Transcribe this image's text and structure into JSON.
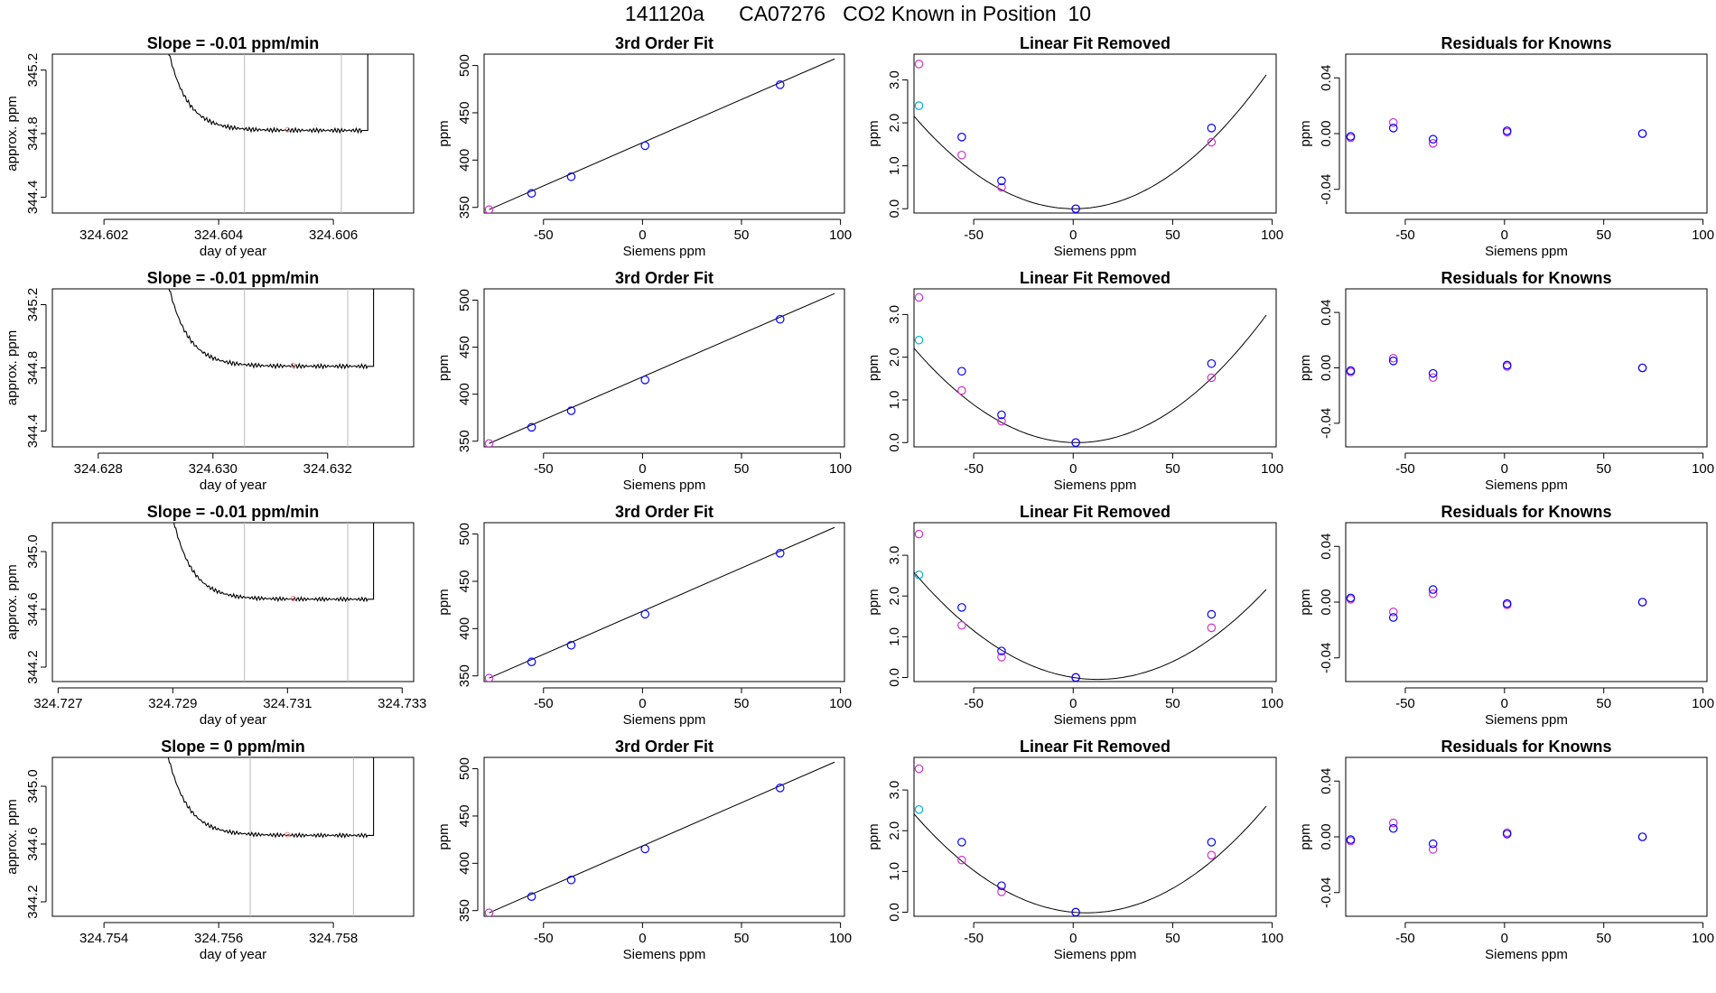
{
  "figure_title": "141120a      CA07276   CO2 Known in Position  10",
  "colors": {
    "fit_line": "#000000",
    "blue": "#0000ff",
    "magenta": "#cc33cc",
    "cyan": "#00b4d8",
    "pink": "#ff8080",
    "marker_line": "#bbbbbb"
  },
  "chart_data": [
    {
      "type": "line",
      "row": 1,
      "col": 1,
      "title": "Slope =  -0.01  ppm/min",
      "xlabel": "day of year",
      "ylabel": "approx. ppm",
      "xticks": [
        324.602,
        324.604,
        324.606
      ],
      "xtick_labels": [
        "324.602",
        "324.604",
        "324.606"
      ],
      "xlim": [
        324.6011,
        324.6074
      ],
      "yticks": [
        344.4,
        344.8,
        345.2
      ],
      "ytick_labels": [
        "344.4",
        "344.8",
        "345.2"
      ],
      "ylim": [
        344.3,
        345.3
      ],
      "start": 324.6029,
      "end": 324.6066,
      "plateau": 344.82,
      "markers": [
        324.60445,
        324.60614
      ],
      "red_mark": 324.6052
    },
    {
      "type": "line",
      "row": 1,
      "col": 2,
      "title": "3rd Order Fit",
      "xlabel": "Siemens ppm",
      "ylabel": "ppm",
      "xticks": [
        -50,
        0,
        50,
        100
      ],
      "xtick_labels": [
        "-50",
        "0",
        "50",
        "100"
      ],
      "xlim": [
        -80,
        102
      ],
      "yticks": [
        350,
        400,
        450,
        500
      ],
      "ytick_labels": [
        "350",
        "400",
        "450",
        "500"
      ],
      "ylim": [
        344,
        512
      ],
      "points_x": [
        -77.5,
        -56,
        -36,
        1.3,
        69.5
      ],
      "points_y": [
        347.6,
        364.8,
        382.4,
        415.2,
        479.7
      ],
      "fit_x": [
        -77.5,
        97
      ],
      "fit_y": [
        347.6,
        507
      ]
    },
    {
      "type": "scatter",
      "row": 1,
      "col": 3,
      "title": "Linear Fit Removed",
      "xlabel": "Siemens ppm",
      "ylabel": "ppm",
      "xticks": [
        -50,
        0,
        50,
        100
      ],
      "xtick_labels": [
        "-50",
        "0",
        "50",
        "100"
      ],
      "xlim": [
        -80,
        102
      ],
      "yticks": [
        0.0,
        1.0,
        2.0,
        3.0
      ],
      "ytick_labels": [
        "0.0",
        "1.0",
        "2.0",
        "3.0"
      ],
      "ylim": [
        -0.1,
        3.6
      ],
      "curve": {
        "a": 0.000334,
        "b": -0.00025,
        "end_x": 97
      },
      "blue_x": [
        -77.5,
        -56,
        -36,
        1.3,
        69.5
      ],
      "blue_y": [
        3.37,
        1.67,
        0.65,
        0.0,
        1.88
      ],
      "magenta_x": [
        -77.5,
        -56,
        -36,
        1.3,
        69.5
      ],
      "magenta_y": [
        3.37,
        1.25,
        0.5,
        0.0,
        1.55
      ],
      "cyan_x": [
        -77.5
      ],
      "cyan_y": [
        2.4
      ]
    },
    {
      "type": "scatter",
      "row": 1,
      "col": 4,
      "title": "Residuals for Knowns",
      "xlabel": "Siemens ppm",
      "ylabel": "ppm",
      "xticks": [
        -50,
        0,
        50,
        100
      ],
      "xtick_labels": [
        "-50",
        "0",
        "50",
        "100"
      ],
      "xlim": [
        -80,
        102
      ],
      "yticks": [
        -0.04,
        0.0,
        0.04
      ],
      "ytick_labels": [
        "-0.04",
        "0.00",
        "0.04"
      ],
      "ylim": [
        -0.057,
        0.057
      ],
      "blue_x": [
        -77.5,
        -56,
        -36,
        1.3,
        69.5
      ],
      "blue_y": [
        -0.002,
        0.004,
        -0.004,
        0.002,
        0.0
      ],
      "magenta_x": [
        -77.5,
        -56,
        -36,
        1.3,
        69.5
      ],
      "magenta_y": [
        -0.003,
        0.008,
        -0.007,
        0.001,
        0.0
      ]
    },
    {
      "type": "line",
      "row": 2,
      "col": 1,
      "title": "Slope =  -0.01  ppm/min",
      "xlabel": "day of year",
      "ylabel": "approx. ppm",
      "xticks": [
        324.628,
        324.63,
        324.632
      ],
      "xtick_labels": [
        "324.628",
        "324.630",
        "324.632"
      ],
      "xlim": [
        324.6272,
        324.6335
      ],
      "yticks": [
        344.4,
        344.8,
        345.2
      ],
      "ytick_labels": [
        "344.4",
        "344.8",
        "345.2"
      ],
      "ylim": [
        344.3,
        345.3
      ],
      "start": 324.629,
      "end": 324.6328,
      "plateau": 344.81,
      "markers": [
        324.63055,
        324.63235
      ],
      "red_mark": 324.6314
    },
    {
      "type": "line",
      "row": 2,
      "col": 2,
      "title": "3rd Order Fit",
      "xlabel": "Siemens ppm",
      "ylabel": "ppm",
      "xticks": [
        -50,
        0,
        50,
        100
      ],
      "xtick_labels": [
        "-50",
        "0",
        "50",
        "100"
      ],
      "xlim": [
        -80,
        102
      ],
      "yticks": [
        350,
        400,
        450,
        500
      ],
      "ytick_labels": [
        "350",
        "400",
        "450",
        "500"
      ],
      "ylim": [
        344,
        512
      ],
      "points_x": [
        -77.5,
        -56,
        -36,
        1.3,
        69.5
      ],
      "points_y": [
        347.6,
        364.8,
        382.4,
        415.2,
        479.7
      ],
      "fit_x": [
        -77.5,
        97
      ],
      "fit_y": [
        347.6,
        507
      ]
    },
    {
      "type": "scatter",
      "row": 2,
      "col": 3,
      "title": "Linear Fit Removed",
      "xlabel": "Siemens ppm",
      "ylabel": "ppm",
      "xticks": [
        -50,
        0,
        50,
        100
      ],
      "xtick_labels": [
        "-50",
        "0",
        "50",
        "100"
      ],
      "xlim": [
        -80,
        102
      ],
      "yticks": [
        0.0,
        1.0,
        2.0,
        3.0
      ],
      "ytick_labels": [
        "0.0",
        "1.0",
        "2.0",
        "3.0"
      ],
      "ylim": [
        -0.1,
        3.6
      ],
      "curve": {
        "a": 0.00033,
        "b": -0.00125,
        "end_x": 97
      },
      "blue_x": [
        -77.5,
        -56,
        -36,
        1.3,
        69.5
      ],
      "blue_y": [
        3.4,
        1.67,
        0.65,
        0.0,
        1.85
      ],
      "magenta_x": [
        -77.5,
        -56,
        -36,
        1.3,
        69.5
      ],
      "magenta_y": [
        3.4,
        1.22,
        0.5,
        0.0,
        1.52
      ],
      "cyan_x": [
        -77.5
      ],
      "cyan_y": [
        2.4
      ]
    },
    {
      "type": "scatter",
      "row": 2,
      "col": 4,
      "title": "Residuals for Knowns",
      "xlabel": "Siemens ppm",
      "ylabel": "ppm",
      "xticks": [
        -50,
        0,
        50,
        100
      ],
      "xtick_labels": [
        "-50",
        "0",
        "50",
        "100"
      ],
      "xlim": [
        -80,
        102
      ],
      "yticks": [
        -0.04,
        0.0,
        0.04
      ],
      "ytick_labels": [
        "-0.04",
        "0.00",
        "0.04"
      ],
      "ylim": [
        -0.057,
        0.057
      ],
      "blue_x": [
        -77.5,
        -56,
        -36,
        1.3,
        69.5
      ],
      "blue_y": [
        -0.002,
        0.005,
        -0.004,
        0.002,
        0.0
      ],
      "magenta_x": [
        -77.5,
        -56,
        -36,
        1.3,
        69.5
      ],
      "magenta_y": [
        -0.003,
        0.007,
        -0.007,
        0.001,
        0.0
      ]
    },
    {
      "type": "line",
      "row": 3,
      "col": 1,
      "title": "Slope =  -0.01  ppm/min",
      "xlabel": "day of year",
      "ylabel": "approx. ppm",
      "xticks": [
        324.727,
        324.729,
        324.731,
        324.733
      ],
      "xtick_labels": [
        "324.727",
        "324.729",
        "324.731",
        "324.733"
      ],
      "xlim": [
        324.7269,
        324.7332
      ],
      "yticks": [
        344.2,
        344.6,
        345.0
      ],
      "ytick_labels": [
        "344.2",
        "344.6",
        "345.0"
      ],
      "ylim": [
        344.1,
        345.2
      ],
      "start": 324.7288,
      "end": 324.7325,
      "plateau": 344.67,
      "markers": [
        324.73025,
        324.73205
      ],
      "red_mark": 324.7311
    },
    {
      "type": "line",
      "row": 3,
      "col": 2,
      "title": "3rd Order Fit",
      "xlabel": "Siemens ppm",
      "ylabel": "ppm",
      "xticks": [
        -50,
        0,
        50,
        100
      ],
      "xtick_labels": [
        "-50",
        "0",
        "50",
        "100"
      ],
      "xlim": [
        -80,
        102
      ],
      "yticks": [
        350,
        400,
        450,
        500
      ],
      "ytick_labels": [
        "350",
        "400",
        "450",
        "500"
      ],
      "ylim": [
        344,
        512
      ],
      "points_x": [
        -77.5,
        -56,
        -36,
        1.3,
        69.5
      ],
      "points_y": [
        347.6,
        364.8,
        382.4,
        415.2,
        479.7
      ],
      "fit_x": [
        -77.5,
        97
      ],
      "fit_y": [
        347.6,
        507
      ]
    },
    {
      "type": "scatter",
      "row": 3,
      "col": 3,
      "title": "Linear Fit Removed",
      "xlabel": "Siemens ppm",
      "ylabel": "ppm",
      "xticks": [
        -50,
        0,
        50,
        100
      ],
      "xtick_labels": [
        "-50",
        "0",
        "50",
        "100"
      ],
      "xlim": [
        -80,
        102
      ],
      "yticks": [
        0.0,
        1.0,
        2.0,
        3.0
      ],
      "ytick_labels": [
        "0.0",
        "1.0",
        "2.0",
        "3.0"
      ],
      "ylim": [
        -0.1,
        3.8
      ],
      "curve": {
        "a": 0.000308,
        "b": -0.0076,
        "end_x": 97
      },
      "blue_x": [
        -77.5,
        -56,
        -36,
        1.3,
        69.5
      ],
      "blue_y": [
        3.52,
        1.72,
        0.65,
        0.0,
        1.55
      ],
      "magenta_x": [
        -77.5,
        -56,
        -36,
        1.3,
        69.5
      ],
      "magenta_y": [
        3.52,
        1.28,
        0.5,
        0.0,
        1.22
      ],
      "cyan_x": [
        -77.5
      ],
      "cyan_y": [
        2.52
      ]
    },
    {
      "type": "scatter",
      "row": 3,
      "col": 4,
      "title": "Residuals for Knowns",
      "xlabel": "Siemens ppm",
      "ylabel": "ppm",
      "xticks": [
        -50,
        0,
        50,
        100
      ],
      "xtick_labels": [
        "-50",
        "0",
        "50",
        "100"
      ],
      "xlim": [
        -80,
        102
      ],
      "yticks": [
        -0.04,
        0.0,
        0.04
      ],
      "ytick_labels": [
        "-0.04",
        "0.00",
        "0.04"
      ],
      "ylim": [
        -0.057,
        0.057
      ],
      "blue_x": [
        -77.5,
        -56,
        -36,
        1.3,
        69.5
      ],
      "blue_y": [
        0.003,
        -0.011,
        0.009,
        -0.001,
        0.0
      ],
      "magenta_x": [
        -77.5,
        -56,
        -36,
        1.3,
        69.5
      ],
      "magenta_y": [
        0.002,
        -0.007,
        0.006,
        -0.002,
        0.0
      ]
    },
    {
      "type": "line",
      "row": 4,
      "col": 1,
      "title": "Slope =  0  ppm/min",
      "xlabel": "day of year",
      "ylabel": "approx. ppm",
      "xticks": [
        324.754,
        324.756,
        324.758
      ],
      "xtick_labels": [
        "324.754",
        "324.756",
        "324.758"
      ],
      "xlim": [
        324.7531,
        324.7594
      ],
      "yticks": [
        344.2,
        344.6,
        345.0
      ],
      "ytick_labels": [
        "344.2",
        "344.6",
        "345.0"
      ],
      "ylim": [
        344.1,
        345.2
      ],
      "start": 324.7549,
      "end": 324.7587,
      "plateau": 344.66,
      "markers": [
        324.75655,
        324.75835
      ],
      "red_mark": 324.7572
    },
    {
      "type": "line",
      "row": 4,
      "col": 2,
      "title": "3rd Order Fit",
      "xlabel": "Siemens ppm",
      "ylabel": "ppm",
      "xticks": [
        -50,
        0,
        50,
        100
      ],
      "xtick_labels": [
        "-50",
        "0",
        "50",
        "100"
      ],
      "xlim": [
        -80,
        102
      ],
      "yticks": [
        350,
        400,
        450,
        500
      ],
      "ytick_labels": [
        "350",
        "400",
        "450",
        "500"
      ],
      "ylim": [
        344,
        512
      ],
      "points_x": [
        -77.5,
        -56,
        -36,
        1.3,
        69.5
      ],
      "points_y": [
        347.6,
        364.8,
        382.4,
        415.2,
        479.7
      ],
      "fit_x": [
        -77.5,
        97
      ],
      "fit_y": [
        347.6,
        507
      ]
    },
    {
      "type": "scatter",
      "row": 4,
      "col": 3,
      "title": "Linear Fit Removed",
      "xlabel": "Siemens ppm",
      "ylabel": "ppm",
      "xticks": [
        -50,
        0,
        50,
        100
      ],
      "xtick_labels": [
        "-50",
        "0",
        "50",
        "100"
      ],
      "xlim": [
        -80,
        102
      ],
      "yticks": [
        0.0,
        1.0,
        2.0,
        3.0
      ],
      "ytick_labels": [
        "0.0",
        "1.0",
        "2.0",
        "3.0"
      ],
      "ylim": [
        -0.1,
        3.8
      ],
      "curve": {
        "a": 0.000322,
        "b": -0.0044,
        "end_x": 97
      },
      "blue_x": [
        -77.5,
        -56,
        -36,
        1.3,
        69.5
      ],
      "blue_y": [
        3.52,
        1.72,
        0.65,
        0.0,
        1.72
      ],
      "magenta_x": [
        -77.5,
        -56,
        -36,
        1.3,
        69.5
      ],
      "magenta_y": [
        3.52,
        1.28,
        0.5,
        0.0,
        1.4
      ],
      "cyan_x": [
        -77.5
      ],
      "cyan_y": [
        2.52
      ]
    },
    {
      "type": "scatter",
      "row": 4,
      "col": 4,
      "title": "Residuals for Knowns",
      "xlabel": "Siemens ppm",
      "ylabel": "ppm",
      "xticks": [
        -50,
        0,
        50,
        100
      ],
      "xtick_labels": [
        "-50",
        "0",
        "50",
        "100"
      ],
      "xlim": [
        -80,
        102
      ],
      "yticks": [
        -0.04,
        0.0,
        0.04
      ],
      "ytick_labels": [
        "-0.04",
        "0.00",
        "0.04"
      ],
      "ylim": [
        -0.057,
        0.057
      ],
      "blue_x": [
        -77.5,
        -56,
        -36,
        1.3,
        69.5
      ],
      "blue_y": [
        -0.002,
        0.006,
        -0.005,
        0.002,
        0.0
      ],
      "magenta_x": [
        -77.5,
        -56,
        -36,
        1.3,
        69.5
      ],
      "magenta_y": [
        -0.003,
        0.01,
        -0.009,
        0.003,
        0.0
      ]
    }
  ]
}
